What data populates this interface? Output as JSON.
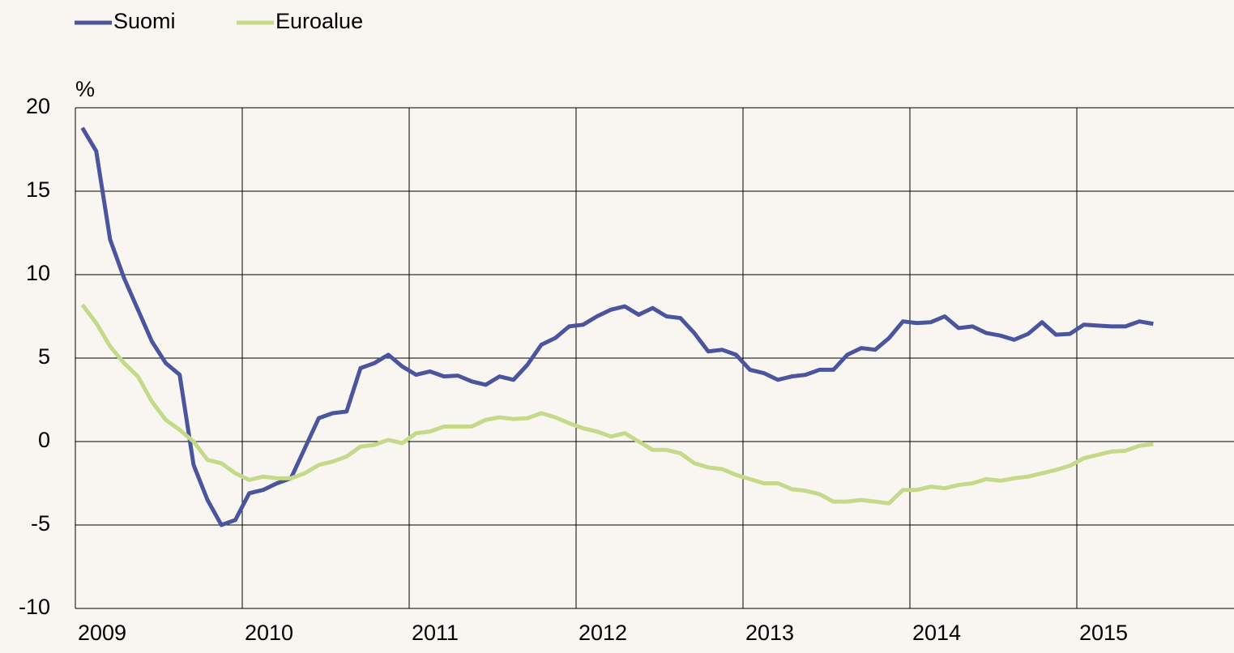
{
  "chart_data": {
    "type": "line",
    "y_label": "%",
    "categories": [
      "2009",
      null,
      null,
      null,
      null,
      null,
      null,
      null,
      null,
      null,
      null,
      null,
      "2010",
      null,
      null,
      null,
      null,
      null,
      null,
      null,
      null,
      null,
      null,
      null,
      "2011",
      null,
      null,
      null,
      null,
      null,
      null,
      null,
      null,
      null,
      null,
      null,
      "2012",
      null,
      null,
      null,
      null,
      null,
      null,
      null,
      null,
      null,
      null,
      null,
      "2013",
      null,
      null,
      null,
      null,
      null,
      null,
      null,
      null,
      null,
      null,
      null,
      "2014",
      null,
      null,
      null,
      null,
      null,
      null,
      null,
      null,
      null,
      null,
      null,
      "2015",
      null,
      null,
      null,
      null,
      null
    ],
    "series": [
      {
        "name": "Suomi",
        "color": "#4a559e",
        "values": [
          18.8,
          17.4,
          12.1,
          9.8,
          7.9,
          6.0,
          4.7,
          4.0,
          -1.4,
          -3.5,
          -5.0,
          -4.7,
          -3.1,
          -2.9,
          -2.5,
          -2.2,
          -0.4,
          1.4,
          1.7,
          1.8,
          4.4,
          4.7,
          5.2,
          4.5,
          4.0,
          4.2,
          3.9,
          3.95,
          3.6,
          3.4,
          3.9,
          3.7,
          4.6,
          5.8,
          6.2,
          6.9,
          7.0,
          7.5,
          7.9,
          8.1,
          7.6,
          8.0,
          7.5,
          7.4,
          6.5,
          5.4,
          5.5,
          5.2,
          4.3,
          4.1,
          3.7,
          3.9,
          4.0,
          4.3,
          4.3,
          5.2,
          5.6,
          5.5,
          6.2,
          7.2,
          7.1,
          7.15,
          7.5,
          6.8,
          6.9,
          6.5,
          6.35,
          6.1,
          6.45,
          7.15,
          6.4,
          6.45,
          7.0,
          6.95,
          6.9,
          6.9,
          7.2,
          7.05
        ]
      },
      {
        "name": "Euroalue",
        "color": "#c5d98a",
        "values": [
          8.2,
          7.1,
          5.7,
          4.7,
          3.9,
          2.4,
          1.3,
          0.7,
          0.0,
          -1.1,
          -1.3,
          -1.9,
          -2.3,
          -2.1,
          -2.2,
          -2.2,
          -1.9,
          -1.4,
          -1.2,
          -0.9,
          -0.3,
          -0.2,
          0.1,
          -0.1,
          0.5,
          0.6,
          0.9,
          0.9,
          0.9,
          1.3,
          1.45,
          1.35,
          1.4,
          1.7,
          1.45,
          1.1,
          0.8,
          0.6,
          0.3,
          0.5,
          0.0,
          -0.5,
          -0.5,
          -0.7,
          -1.3,
          -1.55,
          -1.65,
          -2.0,
          -2.25,
          -2.5,
          -2.5,
          -2.85,
          -2.95,
          -3.15,
          -3.6,
          -3.6,
          -3.5,
          -3.6,
          -3.7,
          -2.9,
          -2.9,
          -2.7,
          -2.8,
          -2.6,
          -2.5,
          -2.25,
          -2.35,
          -2.2,
          -2.1,
          -1.9,
          -1.7,
          -1.45,
          -1.0,
          -0.8,
          -0.6,
          -0.55,
          -0.25,
          -0.15
        ]
      }
    ],
    "ylim": [
      -10,
      20
    ],
    "yticks": [
      -10,
      -5,
      0,
      5,
      10,
      15,
      20
    ],
    "grid": true,
    "legend": "top-left"
  }
}
